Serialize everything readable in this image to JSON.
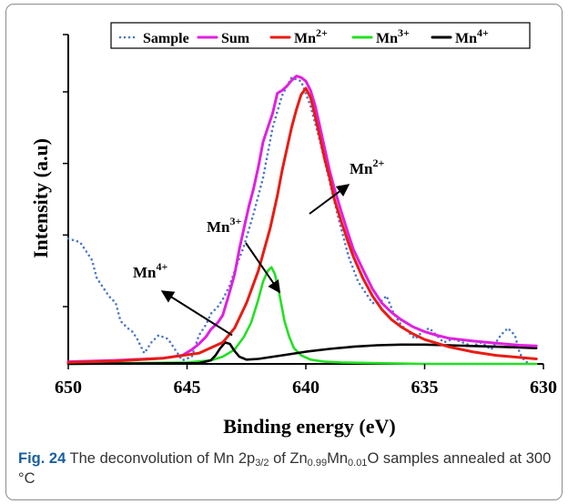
{
  "chart_data": {
    "type": "line",
    "xlabel": "Binding energy (eV)",
    "ylabel": "Intensity (a.u)",
    "xlim": [
      650,
      630
    ],
    "x_ticks": [
      "650",
      "645",
      "640",
      "635",
      "630"
    ],
    "legend_position": "top",
    "series": [
      {
        "name": "Sample",
        "style": "dotted",
        "color": "#4a78c8",
        "x": [
          650,
          649.5,
          649,
          648.8,
          648.5,
          648.3,
          648,
          647.8,
          647.5,
          647.3,
          647.1,
          646.8,
          646.5,
          646.2,
          645.8,
          645.5,
          645.2,
          644.8,
          644.5,
          644.2,
          644,
          643.7,
          643.5,
          643.2,
          643,
          642.6,
          642.2,
          641.8,
          641.4,
          641,
          640.6,
          640.2,
          639.8,
          639.4,
          639,
          638.6,
          638.2,
          637.8,
          637.4,
          637.2,
          636.9,
          636.6,
          636.3,
          636,
          635.7,
          635.4,
          635.1,
          634.8,
          634.5,
          634.2,
          633.8,
          633.4,
          633,
          632.6,
          632.2,
          631.8,
          631.5,
          631.2,
          631,
          630.8,
          630.6
        ],
        "y": [
          1.75,
          1.7,
          1.45,
          1.2,
          1.05,
          0.95,
          0.85,
          0.6,
          0.5,
          0.45,
          0.35,
          0.15,
          0.3,
          0.4,
          0.35,
          0.2,
          0.05,
          0.1,
          0.4,
          0.55,
          0.7,
          0.8,
          0.9,
          1.1,
          1.3,
          1.65,
          2.1,
          2.6,
          3.3,
          3.75,
          4.0,
          3.95,
          3.6,
          3.1,
          2.55,
          2.0,
          1.5,
          1.15,
          0.95,
          0.85,
          0.85,
          0.95,
          0.7,
          0.55,
          0.45,
          0.35,
          0.45,
          0.5,
          0.4,
          0.3,
          0.35,
          0.3,
          0.25,
          0.3,
          0.2,
          0.4,
          0.5,
          0.4,
          0.15,
          0.05,
          0.0
        ]
      },
      {
        "name": "Sum",
        "color": "#e020e0",
        "x": [
          650,
          648,
          646,
          645.2,
          644.8,
          644.5,
          644.2,
          644,
          643.7,
          643.5,
          643.3,
          643,
          642.8,
          642.6,
          642.4,
          642.2,
          642,
          641.8,
          641.6,
          641.4,
          641.2,
          641,
          640.8,
          640.6,
          640.4,
          640.2,
          640,
          639.8,
          639.6,
          639.4,
          639.2,
          639,
          638.8,
          638.5,
          638.2,
          638,
          637.6,
          637.2,
          636.8,
          636.4,
          636,
          635.5,
          635,
          634.5,
          634,
          633,
          632,
          631,
          630.3
        ],
        "y": [
          0.03,
          0.05,
          0.08,
          0.12,
          0.2,
          0.28,
          0.38,
          0.48,
          0.58,
          0.68,
          0.9,
          1.25,
          1.6,
          1.9,
          2.2,
          2.45,
          2.75,
          3.1,
          3.3,
          3.5,
          3.78,
          3.82,
          3.88,
          3.96,
          4.02,
          4.0,
          3.95,
          3.82,
          3.6,
          3.3,
          3.0,
          2.7,
          2.45,
          2.12,
          1.8,
          1.6,
          1.32,
          1.05,
          0.85,
          0.72,
          0.62,
          0.52,
          0.45,
          0.4,
          0.36,
          0.32,
          0.29,
          0.26,
          0.25
        ]
      },
      {
        "name": "Mn2+",
        "color": "#e81c14",
        "x": [
          650,
          648,
          646,
          644.5,
          643.5,
          643,
          642.5,
          642,
          641.5,
          641.2,
          641,
          640.8,
          640.6,
          640.4,
          640.2,
          640,
          639.8,
          639.6,
          639.4,
          639.2,
          639,
          638.8,
          638.5,
          638.2,
          638,
          637.6,
          637.2,
          636.8,
          636.4,
          636,
          635.5,
          635,
          634,
          633,
          632,
          631,
          630.3
        ],
        "y": [
          0.02,
          0.04,
          0.08,
          0.15,
          0.3,
          0.5,
          0.85,
          1.3,
          1.9,
          2.35,
          2.7,
          3.0,
          3.3,
          3.55,
          3.76,
          3.85,
          3.72,
          3.45,
          3.15,
          2.85,
          2.6,
          2.3,
          1.98,
          1.68,
          1.5,
          1.2,
          0.95,
          0.76,
          0.62,
          0.52,
          0.42,
          0.34,
          0.24,
          0.17,
          0.12,
          0.09,
          0.07
        ]
      },
      {
        "name": "Mn3+",
        "color": "#22e022",
        "x": [
          650,
          645,
          644,
          643.5,
          643,
          642.6,
          642.3,
          642,
          641.8,
          641.6,
          641.45,
          641.3,
          641.1,
          640.9,
          640.7,
          640.5,
          640.2,
          639.8,
          639.2,
          638.5,
          637,
          635,
          630.3
        ],
        "y": [
          0.0,
          0.02,
          0.05,
          0.1,
          0.2,
          0.38,
          0.58,
          0.9,
          1.15,
          1.3,
          1.35,
          1.25,
          0.95,
          0.6,
          0.38,
          0.22,
          0.12,
          0.06,
          0.03,
          0.02,
          0.01,
          0.0,
          0.0
        ]
      },
      {
        "name": "Mn4+",
        "color": "#000000",
        "x": [
          650,
          644.5,
          644,
          643.8,
          643.6,
          643.4,
          643.2,
          643,
          642.8,
          642.5,
          642,
          641,
          640,
          639,
          638,
          637,
          636,
          635,
          634,
          633,
          632,
          631,
          630.3
        ],
        "y": [
          0.0,
          0.01,
          0.05,
          0.12,
          0.22,
          0.3,
          0.28,
          0.18,
          0.1,
          0.06,
          0.07,
          0.12,
          0.17,
          0.21,
          0.24,
          0.26,
          0.27,
          0.27,
          0.26,
          0.25,
          0.24,
          0.23,
          0.22
        ]
      }
    ],
    "annotations": [
      {
        "base": "Mn",
        "sup": "2+",
        "target": [
          639.3,
          2.9
        ]
      },
      {
        "base": "Mn",
        "sup": "3+",
        "target": [
          641.1,
          1.0
        ]
      },
      {
        "base": "Mn",
        "sup": "4+",
        "target": [
          643.1,
          0.4
        ]
      }
    ]
  },
  "legend": [
    {
      "label_base": "Sample",
      "label_sup": ""
    },
    {
      "label_base": "Sum",
      "label_sup": ""
    },
    {
      "label_base": "Mn",
      "label_sup": "2+"
    },
    {
      "label_base": "Mn",
      "label_sup": "3+"
    },
    {
      "label_base": "Mn",
      "label_sup": "4+"
    }
  ],
  "caption": {
    "label": "Fig. 24",
    "t1": " The deconvolution of Mn 2p",
    "sub1": "3/2",
    "t2": " of Zn",
    "sub2": "0.99",
    "t3": "Mn",
    "sub3": "0.01",
    "t4": "O samples annealed at 300 °C"
  }
}
